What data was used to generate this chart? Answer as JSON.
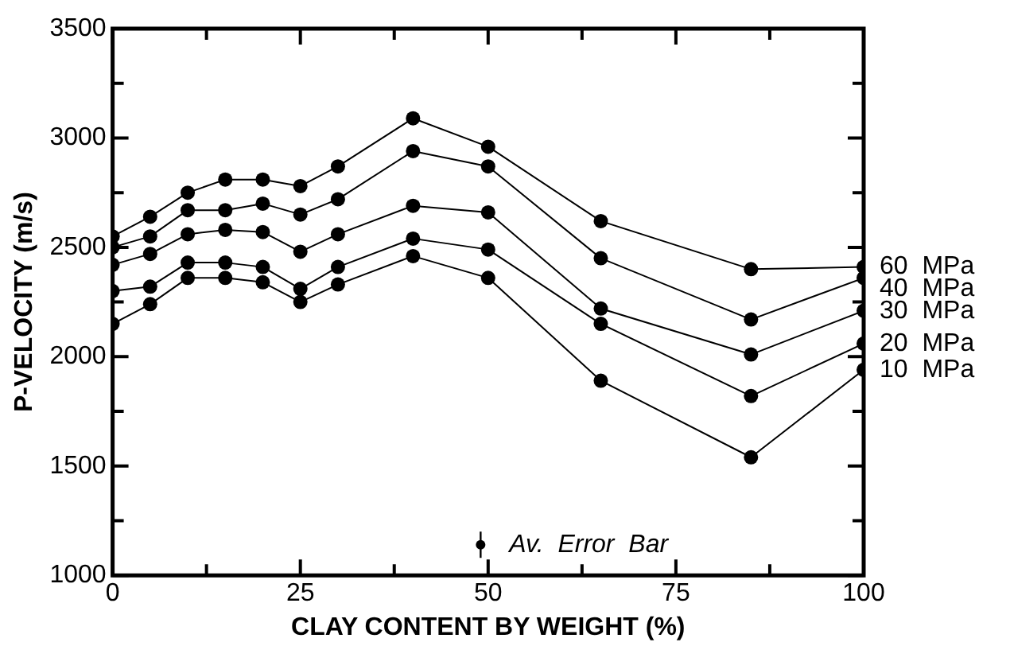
{
  "chart_data": {
    "type": "line",
    "xlabel": "CLAY CONTENT BY WEIGHT (%)",
    "ylabel": "P-VELOCITY (m/s)",
    "x": [
      0,
      5,
      10,
      15,
      20,
      25,
      30,
      40,
      50,
      65,
      85,
      100
    ],
    "series": [
      {
        "name": "60  MPa",
        "color": "#000000",
        "values": [
          2550,
          2640,
          2750,
          2810,
          2810,
          2780,
          2870,
          3090,
          2960,
          2620,
          2400,
          2410
        ]
      },
      {
        "name": "40  MPa",
        "color": "#000000",
        "values": [
          2500,
          2550,
          2670,
          2670,
          2700,
          2650,
          2720,
          2940,
          2870,
          2450,
          2170,
          2360
        ]
      },
      {
        "name": "30  MPa",
        "color": "#000000",
        "values": [
          2420,
          2470,
          2560,
          2580,
          2570,
          2480,
          2560,
          2690,
          2660,
          2220,
          2010,
          2210
        ]
      },
      {
        "name": "20  MPa",
        "color": "#000000",
        "values": [
          2300,
          2320,
          2430,
          2430,
          2410,
          2310,
          2410,
          2540,
          2490,
          2150,
          1820,
          2060
        ]
      },
      {
        "name": "10  MPa",
        "color": "#000000",
        "values": [
          2150,
          2240,
          2360,
          2360,
          2340,
          2250,
          2330,
          2460,
          2360,
          1890,
          1540,
          1940
        ]
      },
      {
        "type": "scatter",
        "color": "#000000",
        "x": [
          49
        ],
        "values": [
          1140
        ],
        "errors": [
          60
        ]
      }
    ],
    "annotations": [
      "Av.  Error  Bar"
    ],
    "xlim": [
      0,
      100
    ],
    "ylim": [
      1000,
      3500
    ],
    "xticks": [
      0,
      {
        "value": 12.5,
        "label": null
      },
      25,
      {
        "value": 37.5,
        "label": null
      },
      50,
      {
        "value": 62.5,
        "label": null
      },
      75,
      {
        "value": 87.5,
        "label": null
      },
      100
    ],
    "yticks": [
      1000,
      {
        "value": 1250,
        "label": null
      },
      1500,
      {
        "value": 1750,
        "label": null
      },
      2000,
      {
        "value": 2250,
        "label": null
      },
      2500,
      {
        "value": 2750,
        "label": null
      },
      3000,
      {
        "value": 3250,
        "label": null
      },
      3500
    ],
    "marker": "circle",
    "line_style": "solid",
    "legend": "right",
    "grid": false
  }
}
